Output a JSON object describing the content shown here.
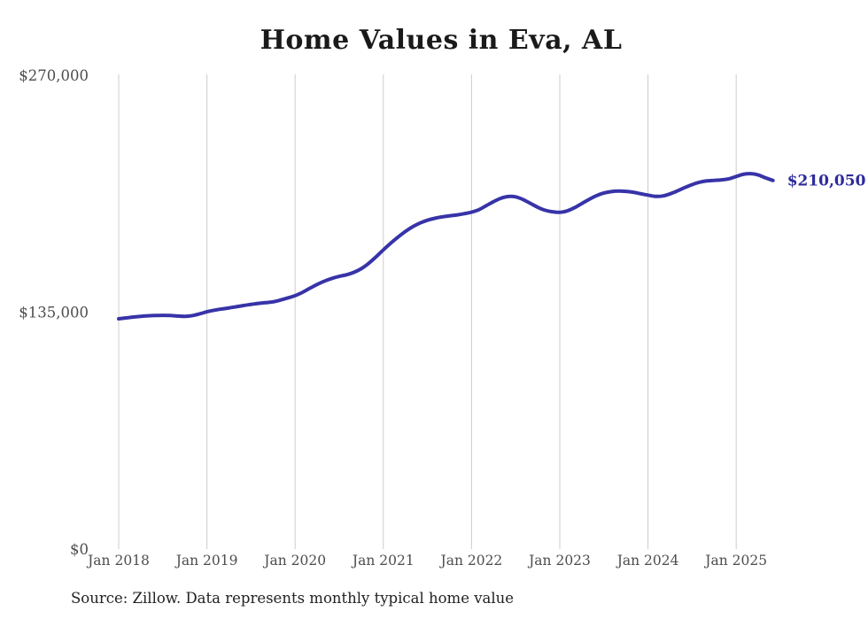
{
  "page": {
    "background": "#ffffff"
  },
  "chart_data": {
    "type": "line",
    "title": "Home Values in Eva, AL",
    "source_note": "Source: Zillow. Data represents monthly typical home value",
    "end_label": "$210,050",
    "xlabel": "",
    "ylabel": "",
    "x_tick_labels": [
      "Jan 2018",
      "Jan 2019",
      "Jan 2020",
      "Jan 2021",
      "Jan 2022",
      "Jan 2023",
      "Jan 2024",
      "Jan 2025"
    ],
    "months_per_tick": 12,
    "ylim": [
      0,
      270000
    ],
    "y_ticks": [
      {
        "value": 0,
        "label": "$0"
      },
      {
        "value": 135000,
        "label": "$135,000"
      },
      {
        "value": 270000,
        "label": "$270,000"
      }
    ],
    "grid": "vertical-only",
    "legend": "none",
    "series": [
      {
        "name": "Typical home value (monthly)",
        "start_month": "Jan 2018",
        "end_month": "Jun 2025",
        "final_value": 210050,
        "values": [
          131200,
          131700,
          132200,
          132600,
          132900,
          133100,
          133200,
          133100,
          132800,
          132600,
          133000,
          134000,
          135200,
          136100,
          136800,
          137400,
          138100,
          138800,
          139400,
          140000,
          140400,
          140900,
          141900,
          143100,
          144400,
          146300,
          148600,
          150800,
          152700,
          154200,
          155400,
          156300,
          157700,
          159800,
          162800,
          166500,
          170500,
          174300,
          177800,
          181000,
          183700,
          185800,
          187400,
          188500,
          189300,
          189900,
          190400,
          191100,
          192000,
          193400,
          195700,
          198000,
          199900,
          200900,
          200700,
          199200,
          197000,
          194800,
          193100,
          192200,
          191900,
          192700,
          194500,
          196900,
          199300,
          201400,
          202900,
          203700,
          204000,
          203800,
          203300,
          202500,
          201700,
          201000,
          201200,
          202400,
          204100,
          206000,
          207700,
          209000,
          209800,
          210100,
          210400,
          211000,
          212300,
          213600,
          213900,
          213200,
          211500,
          210050
        ]
      }
    ],
    "colors": {
      "line": "#3733a8",
      "end_label": "#2d2a9e",
      "grid": "#cccccc",
      "axis_text": "#4d4d4d",
      "title_text": "#1a1a1a",
      "source_text": "#222222"
    }
  }
}
